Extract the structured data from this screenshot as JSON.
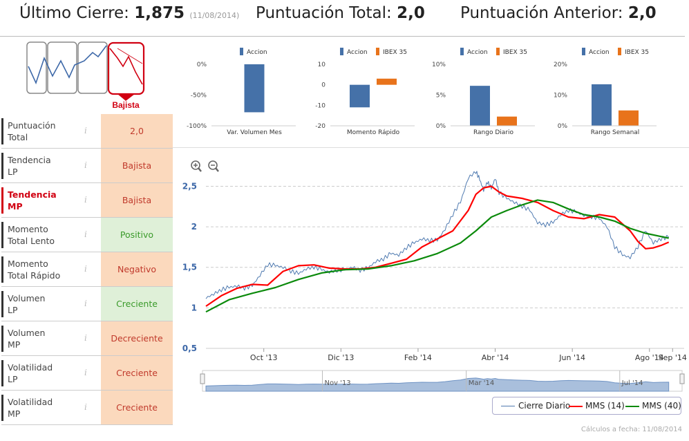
{
  "header": {
    "ultimo_label": "Último Cierre: ",
    "ultimo_value": "1,875",
    "ultimo_date": "(11/08/2014)",
    "total_label": "Puntuación Total: ",
    "total_value": "2,0",
    "anterior_label": "Puntuación Anterior: ",
    "anterior_value": "2,0"
  },
  "trend_label": "Bajista",
  "indicators": [
    {
      "label_1": "Puntuación",
      "label_2": "Total",
      "info": "i",
      "value": "2,0",
      "status": "neg",
      "highlight": false
    },
    {
      "label_1": "Tendencia",
      "label_2": "LP",
      "info": "i",
      "value": "Bajista",
      "status": "neg",
      "highlight": false
    },
    {
      "label_1": "Tendencia",
      "label_2": "MP",
      "info": "i",
      "value": "Bajista",
      "status": "neg",
      "highlight": true
    },
    {
      "label_1": "Momento",
      "label_2": "Total Lento",
      "info": "i",
      "value": "Positivo",
      "status": "pos",
      "highlight": false
    },
    {
      "label_1": "Momento",
      "label_2": "Total Rápido",
      "info": "i",
      "value": "Negativo",
      "status": "neg",
      "highlight": false
    },
    {
      "label_1": "Volumen",
      "label_2": "LP",
      "info": "i",
      "value": "Creciente",
      "status": "pos",
      "highlight": false
    },
    {
      "label_1": "Volumen",
      "label_2": "MP",
      "info": "i",
      "value": "Decreciente",
      "status": "neg",
      "highlight": false
    },
    {
      "label_1": "Volatilidad",
      "label_2": "LP",
      "info": "i",
      "value": "Creciente",
      "status": "neg",
      "highlight": false
    },
    {
      "label_1": "Volatilidad",
      "label_2": "MP",
      "info": "i",
      "value": "Creciente",
      "status": "neg",
      "highlight": false
    }
  ],
  "colors": {
    "accion": "#4571a8",
    "ibex": "#e8731b",
    "neg_bg": "#fbd9bd",
    "neg_text": "#c0392b",
    "pos_bg": "#dff0d8",
    "pos_text": "#3a9a2a",
    "red": "#d10012",
    "green": "#0b8a0b",
    "blue_line": "#4f7ab0"
  },
  "chart_data": [
    {
      "type": "bar",
      "title": "Var. Volumen Mes",
      "series": [
        {
          "name": "Accion",
          "values": [
            -78
          ]
        }
      ],
      "yticks": [
        "0%",
        "-50%",
        "-100%"
      ],
      "ylim": [
        -100,
        0
      ]
    },
    {
      "type": "bar",
      "title": "Momento Rápido",
      "series": [
        {
          "name": "Accion",
          "values": [
            -11
          ]
        },
        {
          "name": "IBEX 35",
          "values": [
            3
          ]
        }
      ],
      "yticks": [
        "10",
        "0",
        "-10",
        "-20"
      ],
      "ylim": [
        -20,
        10
      ]
    },
    {
      "type": "bar",
      "title": "Rango Diario",
      "series": [
        {
          "name": "Accion",
          "values": [
            6.5
          ]
        },
        {
          "name": "IBEX 35",
          "values": [
            1.5
          ]
        }
      ],
      "yticks": [
        "10%",
        "5%",
        "0%"
      ],
      "ylim": [
        0,
        10
      ]
    },
    {
      "type": "bar",
      "title": "Rango Semanal",
      "series": [
        {
          "name": "Accion",
          "values": [
            13.5
          ]
        },
        {
          "name": "IBEX 35",
          "values": [
            5
          ]
        }
      ],
      "yticks": [
        "20%",
        "10%",
        "0%"
      ],
      "ylim": [
        0,
        20
      ]
    },
    {
      "type": "line",
      "title": "",
      "ylim": [
        0.5,
        2.7
      ],
      "yticks": [
        {
          "v": 2.5,
          "t": "2,5"
        },
        {
          "v": 2,
          "t": "2"
        },
        {
          "v": 1.5,
          "t": "1,5"
        },
        {
          "v": 1,
          "t": "1"
        },
        {
          "v": 0.5,
          "t": "0,5"
        }
      ],
      "xrange": [
        0,
        12.4
      ],
      "xticks": [
        {
          "v": 1.5,
          "t": "Oct '13"
        },
        {
          "v": 3.5,
          "t": "Dic '13"
        },
        {
          "v": 5.5,
          "t": "Feb '14"
        },
        {
          "v": 7.5,
          "t": "Abr '14"
        },
        {
          "v": 9.5,
          "t": "Jun '14"
        },
        {
          "v": 11.5,
          "t": "Ago '14"
        },
        {
          "v": 12.1,
          "t": "Sep '14"
        }
      ],
      "navigator_labels": [
        {
          "v": 0.25,
          "t": "Nov '13"
        },
        {
          "v": 0.55,
          "t": "Mar '14"
        },
        {
          "v": 0.87,
          "t": "Jul '14"
        }
      ],
      "legend": [
        "Cierre Diario",
        "MMS (14)",
        "MMS (40)"
      ],
      "series": [
        {
          "name": "Cierre Diario",
          "x": [
            0,
            0.2,
            0.4,
            0.6,
            0.8,
            1.0,
            1.2,
            1.4,
            1.6,
            1.8,
            2.0,
            2.2,
            2.4,
            2.6,
            2.8,
            3.0,
            3.2,
            3.4,
            3.6,
            3.8,
            4.0,
            4.2,
            4.4,
            4.6,
            4.8,
            5.0,
            5.2,
            5.4,
            5.6,
            5.8,
            6.0,
            6.2,
            6.4,
            6.6,
            6.8,
            7.0,
            7.1,
            7.2,
            7.3,
            7.4,
            7.5,
            7.6,
            7.8,
            8.0,
            8.2,
            8.4,
            8.6,
            8.8,
            9.0,
            9.2,
            9.4,
            9.6,
            9.8,
            10.0,
            10.2,
            10.4,
            10.6,
            10.8,
            11.0,
            11.2,
            11.4,
            11.6,
            11.8,
            12.0
          ],
          "y": [
            1.12,
            1.17,
            1.22,
            1.25,
            1.27,
            1.24,
            1.27,
            1.4,
            1.53,
            1.52,
            1.5,
            1.45,
            1.42,
            1.48,
            1.5,
            1.47,
            1.44,
            1.46,
            1.47,
            1.5,
            1.46,
            1.49,
            1.57,
            1.6,
            1.67,
            1.65,
            1.74,
            1.8,
            1.85,
            1.83,
            1.83,
            1.97,
            2.15,
            2.3,
            2.6,
            2.68,
            2.58,
            2.45,
            2.55,
            2.47,
            2.6,
            2.42,
            2.35,
            2.3,
            2.25,
            2.2,
            2.05,
            2.02,
            2.05,
            2.15,
            2.2,
            2.18,
            2.14,
            2.12,
            2.1,
            2.0,
            1.75,
            1.65,
            1.62,
            1.75,
            1.95,
            1.8,
            1.85,
            1.87
          ]
        },
        {
          "name": "MMS (14)",
          "x": [
            0,
            0.4,
            0.8,
            1.2,
            1.6,
            2.0,
            2.4,
            2.8,
            3.2,
            3.6,
            4.0,
            4.4,
            4.8,
            5.2,
            5.6,
            6.0,
            6.4,
            6.8,
            7.0,
            7.2,
            7.4,
            7.6,
            7.8,
            8.2,
            8.6,
            9.0,
            9.4,
            9.8,
            10.2,
            10.6,
            11.0,
            11.2,
            11.4,
            11.6,
            11.8,
            12.0
          ],
          "y": [
            1.02,
            1.15,
            1.24,
            1.29,
            1.28,
            1.45,
            1.52,
            1.53,
            1.49,
            1.48,
            1.48,
            1.5,
            1.55,
            1.6,
            1.75,
            1.85,
            1.95,
            2.2,
            2.4,
            2.48,
            2.5,
            2.43,
            2.38,
            2.35,
            2.3,
            2.2,
            2.12,
            2.1,
            2.15,
            2.12,
            1.95,
            1.82,
            1.73,
            1.74,
            1.77,
            1.81
          ]
        },
        {
          "name": "MMS (40)",
          "x": [
            0,
            0.6,
            1.2,
            1.8,
            2.4,
            3.0,
            3.6,
            4.2,
            4.8,
            5.4,
            6.0,
            6.6,
            7.0,
            7.4,
            7.8,
            8.2,
            8.6,
            9.0,
            9.4,
            9.8,
            10.2,
            10.6,
            11.0,
            11.4,
            11.8,
            12.0
          ],
          "y": [
            0.95,
            1.1,
            1.18,
            1.25,
            1.35,
            1.43,
            1.47,
            1.48,
            1.52,
            1.58,
            1.67,
            1.8,
            1.95,
            2.12,
            2.2,
            2.27,
            2.33,
            2.3,
            2.22,
            2.15,
            2.12,
            2.07,
            1.98,
            1.92,
            1.88,
            1.86
          ]
        }
      ]
    }
  ],
  "footer": "Cálculos a fecha: 11/08/2014"
}
